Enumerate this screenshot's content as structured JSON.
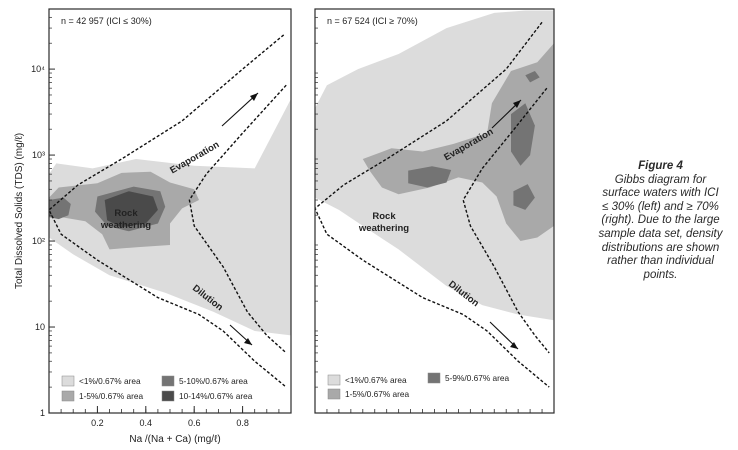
{
  "caption": {
    "title": "Figure 4",
    "text": "Gibbs diagram for surface waters with ICI ≤ 30% (left) and ≥ 70% (right). Due to the large sample data set, density distributions are shown rather than individual points."
  },
  "colors": {
    "band_1": "#dcdcdc",
    "band_2": "#a9a9a9",
    "band_3": "#747474",
    "band_4": "#4a4a4a",
    "frame": "#2b2b2b",
    "boundary": "#111111"
  },
  "chart_data": [
    {
      "type": "contour-density",
      "panel": "left",
      "annotation": "n = 42 957 (ICI ≤ 30%)",
      "xlabel": "Na /(Na + Ca)  (mg/ℓ)",
      "ylabel": "Total Dissolved Solids (TDS)  (mg/ℓ)",
      "xlim": [
        0,
        1
      ],
      "ylim": [
        1,
        50000
      ],
      "yscale": "log",
      "x_ticks": [
        0.2,
        0.4,
        0.6,
        0.8
      ],
      "x_tick_labels": [
        "0.2",
        "0.4",
        "0.6",
        "0.8"
      ],
      "y_ticks": [
        1,
        10,
        100,
        1000,
        10000
      ],
      "y_tick_labels": [
        "1",
        "10",
        "10²",
        "10³",
        "10⁴"
      ],
      "labels": [
        "Evaporation",
        "Rock weathering",
        "Dilution"
      ],
      "legend": [
        {
          "label": "<1%/0.67% area",
          "level": 1
        },
        {
          "label": "1-5%/0.67% area",
          "level": 2
        },
        {
          "label": "5-10%/0.67% area",
          "level": 3
        },
        {
          "label": "10-14%/0.67% area",
          "level": 4
        }
      ],
      "regions": [
        {
          "level": 1,
          "points": [
            [
              0.0,
              600
            ],
            [
              0.03,
              800
            ],
            [
              0.18,
              700
            ],
            [
              0.36,
              900
            ],
            [
              0.6,
              750
            ],
            [
              0.85,
              700
            ],
            [
              1.0,
              4500
            ],
            [
              1.0,
              8
            ],
            [
              0.85,
              9
            ],
            [
              0.68,
              15
            ],
            [
              0.48,
              25
            ],
            [
              0.25,
              40
            ],
            [
              0.1,
              70
            ],
            [
              0.0,
              110
            ]
          ]
        },
        {
          "level": 2,
          "points": [
            [
              0.0,
              320
            ],
            [
              0.04,
              420
            ],
            [
              0.2,
              470
            ],
            [
              0.3,
              620
            ],
            [
              0.42,
              640
            ],
            [
              0.5,
              480
            ],
            [
              0.6,
              400
            ],
            [
              0.62,
              300
            ],
            [
              0.55,
              240
            ],
            [
              0.5,
              160
            ],
            [
              0.5,
              90
            ],
            [
              0.37,
              85
            ],
            [
              0.25,
              80
            ],
            [
              0.22,
              120
            ],
            [
              0.15,
              170
            ],
            [
              0.05,
              190
            ],
            [
              0.0,
              200
            ]
          ]
        },
        {
          "level": 3,
          "points": [
            [
              0.0,
              300
            ],
            [
              0.06,
              320
            ],
            [
              0.09,
              270
            ],
            [
              0.08,
              200
            ],
            [
              0.04,
              180
            ],
            [
              0.0,
              190
            ]
          ]
        },
        {
          "level": 3,
          "points": [
            [
              0.2,
              330
            ],
            [
              0.35,
              430
            ],
            [
              0.46,
              380
            ],
            [
              0.48,
              250
            ],
            [
              0.45,
              160
            ],
            [
              0.33,
              130
            ],
            [
              0.24,
              150
            ],
            [
              0.19,
              220
            ]
          ]
        },
        {
          "level": 4,
          "points": [
            [
              0.23,
              300
            ],
            [
              0.33,
              380
            ],
            [
              0.43,
              330
            ],
            [
              0.45,
              230
            ],
            [
              0.4,
              160
            ],
            [
              0.3,
              145
            ],
            [
              0.24,
              175
            ]
          ]
        }
      ],
      "boundaries": [
        {
          "points": [
            [
              0.97,
              25000
            ],
            [
              0.8,
              10000
            ],
            [
              0.55,
              2500
            ],
            [
              0.3,
              900
            ],
            [
              0.12,
              450
            ],
            [
              0.0,
              230
            ],
            [
              0.05,
              120
            ],
            [
              0.2,
              60
            ],
            [
              0.45,
              22
            ],
            [
              0.62,
              14
            ],
            [
              0.72,
              9
            ],
            [
              0.85,
              4
            ],
            [
              0.98,
              2
            ]
          ]
        },
        {
          "points": [
            [
              0.98,
              6500
            ],
            [
              0.8,
              1800
            ],
            [
              0.65,
              600
            ],
            [
              0.58,
              300
            ],
            [
              0.6,
              150
            ],
            [
              0.72,
              50
            ],
            [
              0.82,
              15
            ],
            [
              0.9,
              8
            ],
            [
              0.98,
              5
            ]
          ]
        }
      ]
    },
    {
      "type": "contour-density",
      "panel": "right",
      "annotation": "n = 67 524 (ICI ≥ 70%)",
      "xlabel": "",
      "ylabel": "",
      "xlim": [
        0,
        1
      ],
      "ylim": [
        1,
        50000
      ],
      "yscale": "log",
      "x_ticks": [],
      "x_tick_labels": [],
      "y_ticks": [],
      "y_tick_labels": [],
      "labels": [
        "Evaporation",
        "Rock weathering",
        "Dilution"
      ],
      "legend": [
        {
          "label": "<1%/0.67% area",
          "level": 1
        },
        {
          "label": "5-9%/0.67% area",
          "level": 3
        },
        {
          "label": "1-5%/0.67% area",
          "level": 2
        }
      ],
      "regions": [
        {
          "level": 1,
          "points": [
            [
              0.0,
              3500
            ],
            [
              0.05,
              6500
            ],
            [
              0.18,
              10000
            ],
            [
              0.35,
              15000
            ],
            [
              0.55,
              30000
            ],
            [
              0.75,
              45000
            ],
            [
              0.88,
              48000
            ],
            [
              1.0,
              48000
            ],
            [
              1.0,
              12
            ],
            [
              0.85,
              14
            ],
            [
              0.7,
              18
            ],
            [
              0.55,
              30
            ],
            [
              0.35,
              80
            ],
            [
              0.2,
              150
            ],
            [
              0.1,
              230
            ],
            [
              0.0,
              320
            ]
          ]
        },
        {
          "level": 2,
          "points": [
            [
              0.2,
              900
            ],
            [
              0.32,
              1200
            ],
            [
              0.45,
              1100
            ],
            [
              0.58,
              1350
            ],
            [
              0.72,
              1800
            ],
            [
              0.74,
              4000
            ],
            [
              0.82,
              9500
            ],
            [
              0.93,
              12000
            ],
            [
              1.0,
              20000
            ],
            [
              1.0,
              150
            ],
            [
              0.93,
              110
            ],
            [
              0.86,
              100
            ],
            [
              0.8,
              160
            ],
            [
              0.76,
              330
            ],
            [
              0.7,
              480
            ],
            [
              0.6,
              550
            ],
            [
              0.48,
              420
            ],
            [
              0.35,
              350
            ],
            [
              0.28,
              420
            ],
            [
              0.23,
              650
            ]
          ]
        },
        {
          "level": 3,
          "points": [
            [
              0.39,
              660
            ],
            [
              0.49,
              740
            ],
            [
              0.57,
              670
            ],
            [
              0.55,
              480
            ],
            [
              0.47,
              420
            ],
            [
              0.39,
              470
            ]
          ]
        },
        {
          "level": 3,
          "points": [
            [
              0.82,
              3000
            ],
            [
              0.88,
              4000
            ],
            [
              0.92,
              2200
            ],
            [
              0.9,
              1000
            ],
            [
              0.86,
              750
            ],
            [
              0.82,
              1100
            ]
          ]
        },
        {
          "level": 3,
          "points": [
            [
              0.83,
              380
            ],
            [
              0.89,
              460
            ],
            [
              0.92,
              320
            ],
            [
              0.88,
              230
            ],
            [
              0.83,
              260
            ]
          ]
        },
        {
          "level": 3,
          "points": [
            [
              0.88,
              8500
            ],
            [
              0.92,
              9500
            ],
            [
              0.94,
              8000
            ],
            [
              0.9,
              7000
            ]
          ]
        }
      ],
      "boundaries": [
        {
          "points": [
            [
              0.95,
              35000
            ],
            [
              0.8,
              10000
            ],
            [
              0.55,
              2500
            ],
            [
              0.3,
              900
            ],
            [
              0.12,
              450
            ],
            [
              0.0,
              240
            ],
            [
              0.05,
              120
            ],
            [
              0.2,
              60
            ],
            [
              0.45,
              22
            ],
            [
              0.62,
              14
            ],
            [
              0.72,
              9
            ],
            [
              0.85,
              4
            ],
            [
              0.98,
              2
            ]
          ]
        },
        {
          "points": [
            [
              0.97,
              6000
            ],
            [
              0.82,
              1800
            ],
            [
              0.7,
              700
            ],
            [
              0.62,
              300
            ],
            [
              0.65,
              150
            ],
            [
              0.75,
              50
            ],
            [
              0.85,
              15
            ],
            [
              0.92,
              8
            ],
            [
              0.98,
              5
            ]
          ]
        }
      ]
    }
  ]
}
